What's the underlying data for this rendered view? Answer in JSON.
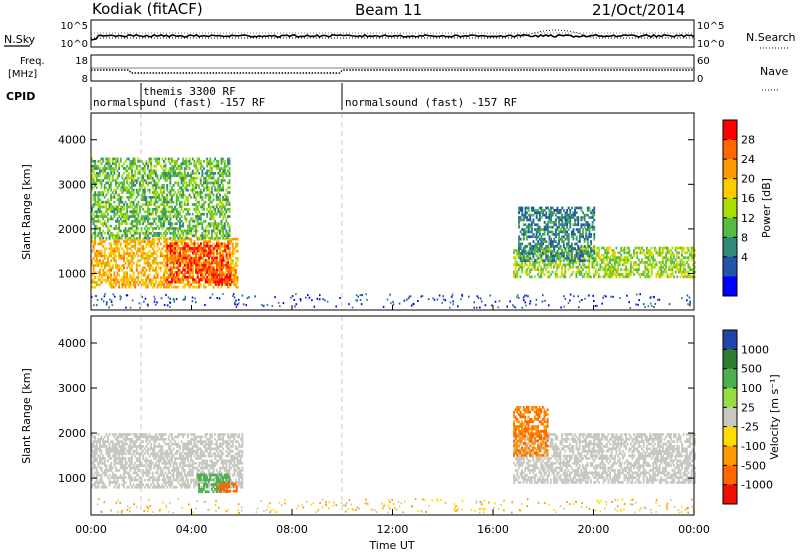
{
  "header": {
    "radar": "Kodiak (fitACF)",
    "beam": "Beam 11",
    "date": "21/Oct/2014"
  },
  "strip_labels": {
    "nsky": "N.Sky",
    "nsky_ticks": [
      "10^5",
      "10^0"
    ],
    "nsearch": "N.Search",
    "nsearch_ticks": [
      "10^5",
      "10^0"
    ],
    "freq_top": "Freq.",
    "freq_unit": "[MHz]",
    "freq_ticks": [
      "18",
      "8"
    ],
    "nave": "Nave",
    "nave_ticks": [
      "60",
      "0"
    ],
    "cpid": "CPID"
  },
  "cpid_segments": [
    {
      "label": "normalsound (fast) -157 RF",
      "start_hour": 0
    },
    {
      "label": "themis 3300 RF",
      "start_hour": 2
    },
    {
      "label": "normalsound (fast) -157 RF",
      "start_hour": 10
    }
  ],
  "y_axis_label": "Slant Range [km]",
  "x_axis_label": "Time UT",
  "x_ticks": [
    "00:00",
    "04:00",
    "08:00",
    "12:00",
    "16:00",
    "20:00",
    "00:00"
  ],
  "range_ticks": [
    "1000",
    "2000",
    "3000",
    "4000"
  ],
  "power_colorbar": {
    "label": "Power [dB]",
    "ticks": [
      "28",
      "24",
      "20",
      "16",
      "12",
      "8",
      "4"
    ],
    "colors": [
      "#ff0000",
      "#ff6600",
      "#ff9900",
      "#ffcc00",
      "#aadd00",
      "#55bb44",
      "#338877",
      "#2255aa",
      "#0000ff"
    ]
  },
  "velocity_colorbar": {
    "label": "Velocity [m s⁻¹]",
    "ticks": [
      "1000",
      "500",
      "100",
      "25",
      "-25",
      "-100",
      "-500",
      "-1000"
    ],
    "colors": [
      "#2244aa",
      "#2e7d32",
      "#4caf50",
      "#99dd44",
      "#c8c8c0",
      "#ffdd00",
      "#ff9900",
      "#ff6600",
      "#ee1100"
    ]
  },
  "chart_data": [
    {
      "type": "heatmap",
      "title": "Power",
      "xlabel": "Time UT",
      "ylabel": "Slant Range [km]",
      "xlim_hours": [
        0,
        24
      ],
      "ylim_km": [
        180,
        4600
      ],
      "colorbar_label": "Power [dB]",
      "colorbar_range": [
        0,
        30
      ],
      "regions": [
        {
          "t": [
            0.0,
            5.8
          ],
          "range_km": [
            700,
            1800
          ],
          "value_db": 20
        },
        {
          "t": [
            3.0,
            5.5
          ],
          "range_km": [
            800,
            1700
          ],
          "value_db": 26
        },
        {
          "t": [
            4.8,
            5.6
          ],
          "range_km": [
            750,
            1000
          ],
          "value_db": 28
        },
        {
          "t": [
            0.0,
            5.5
          ],
          "range_km": [
            1800,
            3600
          ],
          "value_db": 12
        },
        {
          "t": [
            16.8,
            24.0
          ],
          "range_km": [
            900,
            1600
          ],
          "value_db": 14
        },
        {
          "t": [
            17.0,
            20.0
          ],
          "range_km": [
            1300,
            2500
          ],
          "value_db": 8
        }
      ]
    },
    {
      "type": "heatmap",
      "title": "Velocity",
      "xlabel": "Time UT",
      "ylabel": "Slant Range [km]",
      "xlim_hours": [
        0,
        24
      ],
      "ylim_km": [
        180,
        4600
      ],
      "colorbar_label": "Velocity [m s⁻¹]",
      "colorbar_range": [
        -1000,
        1000
      ],
      "regions": [
        {
          "t": [
            0.0,
            6.0
          ],
          "range_km": [
            800,
            2000
          ],
          "value_ms": 0
        },
        {
          "t": [
            4.2,
            5.5
          ],
          "range_km": [
            700,
            1100
          ],
          "value_ms": 150
        },
        {
          "t": [
            5.0,
            5.8
          ],
          "range_km": [
            700,
            900
          ],
          "value_ms": -400
        },
        {
          "t": [
            16.8,
            24.0
          ],
          "range_km": [
            900,
            2000
          ],
          "value_ms": 0
        },
        {
          "t": [
            16.8,
            18.2
          ],
          "range_km": [
            1500,
            2600
          ],
          "value_ms": -300
        }
      ]
    }
  ]
}
